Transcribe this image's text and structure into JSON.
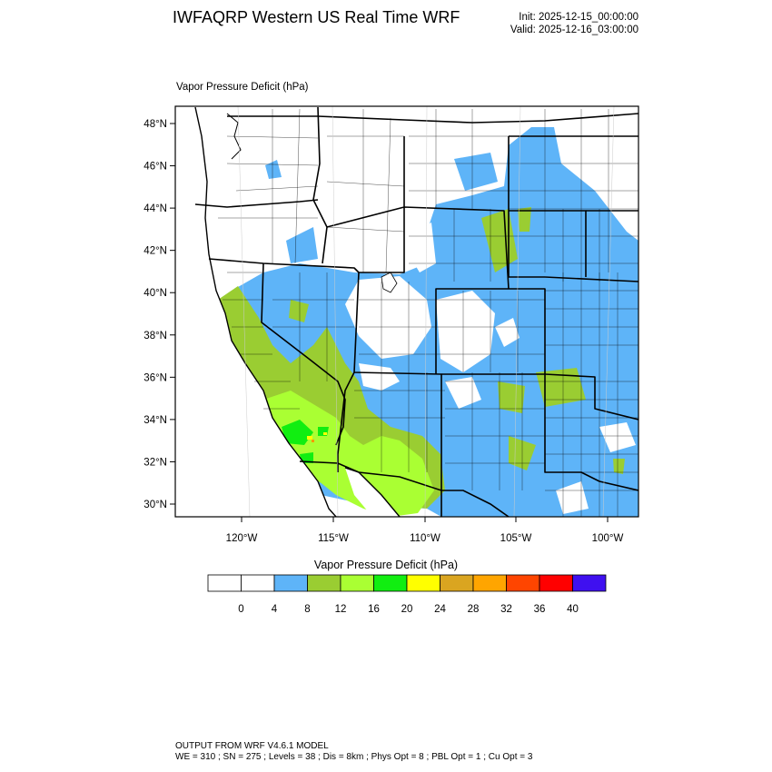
{
  "header": {
    "title": "IWFAQRP Western US Real Time WRF",
    "init": "Init: 2025-12-15_00:00:00",
    "valid": "Valid: 2025-12-16_03:00:00"
  },
  "map": {
    "field_label": "Vapor Pressure Deficit   (hPa)",
    "lat_labels": [
      "30°N",
      "32°N",
      "34°N",
      "36°N",
      "38°N",
      "40°N",
      "42°N",
      "44°N",
      "46°N",
      "48°N"
    ],
    "lon_labels": [
      "120°W",
      "115°W",
      "110°W",
      "105°W",
      "100°W"
    ],
    "colors": {
      "blue": "#5eb4f8",
      "olive": "#9acd32",
      "lime": "#aaff33",
      "green": "#11ee11",
      "yellow": "#ffff00",
      "orange": "#ff9900",
      "water": "#ffffff"
    }
  },
  "colorbar": {
    "title": "Vapor Pressure Deficit  (hPa)",
    "labels": [
      "0",
      "4",
      "8",
      "12",
      "16",
      "20",
      "24",
      "28",
      "32",
      "36",
      "40"
    ],
    "colors": [
      "#ffffff",
      "#ffffff",
      "#5eb4f8",
      "#9acd32",
      "#aaff33",
      "#11ee11",
      "#ffff00",
      "#daa520",
      "#ffa500",
      "#ff4500",
      "#ff0000",
      "#3f10f0"
    ]
  },
  "footer": {
    "line1": "OUTPUT FROM WRF V4.6.1 MODEL",
    "line2": "WE = 310 ; SN = 275 ; Levels = 38 ; Dis = 8km ; Phys Opt = 8 ; PBL Opt = 1 ; Cu Opt = 3"
  }
}
